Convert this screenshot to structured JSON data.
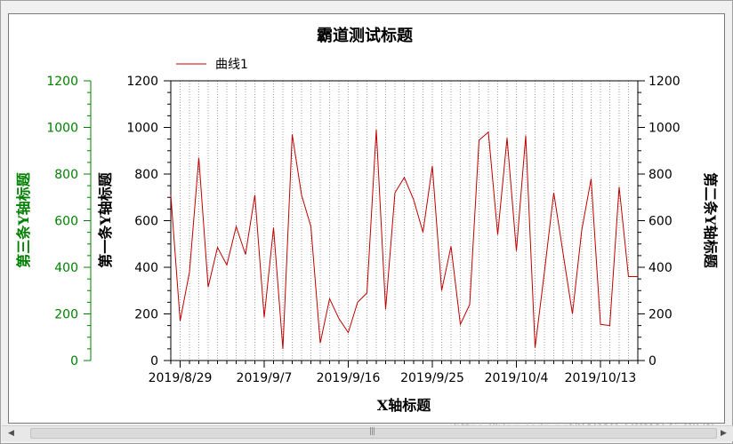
{
  "colors": {
    "series": "#c00000",
    "axis_left_outer": "#008000",
    "axis": "#000000",
    "grid": "#a0a0a0"
  },
  "watermark": "https://blog.csdn.net/BADAO_LIOMAEG_QILIN",
  "scrollbar": {
    "left_icon": "scroll-left-arrow-icon",
    "right_icon": "scroll-right-arrow-icon",
    "grip": "|||"
  },
  "chart_data": {
    "type": "line",
    "title": "霸道测试标题",
    "xlabel": "X轴标题",
    "ylabel_left_outer": "第三条Y轴标题",
    "ylabel_left": "第一条Y轴标题",
    "ylabel_right": "第二条Y轴标题",
    "ylim": [
      0,
      1200
    ],
    "yticks": [
      0,
      200,
      400,
      600,
      800,
      1000,
      1200
    ],
    "xlim": [
      "2019-08-28",
      "2019-10-17"
    ],
    "xtick_labels": [
      "2019/8/29",
      "2019/9/7",
      "2019/9/16",
      "2019/9/25",
      "2019/10/4",
      "2019/10/13"
    ],
    "xtick_dates": [
      "2019-08-29",
      "2019-09-07",
      "2019-09-16",
      "2019-09-25",
      "2019-10-04",
      "2019-10-13"
    ],
    "grid": "vertical dotted lines at each day",
    "legend_position": "top-left",
    "series": [
      {
        "name": "曲线1",
        "x": [
          "2019-08-28",
          "2019-08-29",
          "2019-08-30",
          "2019-08-31",
          "2019-09-01",
          "2019-09-02",
          "2019-09-03",
          "2019-09-04",
          "2019-09-05",
          "2019-09-06",
          "2019-09-07",
          "2019-09-08",
          "2019-09-09",
          "2019-09-10",
          "2019-09-11",
          "2019-09-12",
          "2019-09-13",
          "2019-09-14",
          "2019-09-15",
          "2019-09-16",
          "2019-09-17",
          "2019-09-18",
          "2019-09-19",
          "2019-09-20",
          "2019-09-21",
          "2019-09-22",
          "2019-09-23",
          "2019-09-24",
          "2019-09-25",
          "2019-09-26",
          "2019-09-27",
          "2019-09-28",
          "2019-09-29",
          "2019-09-30",
          "2019-10-01",
          "2019-10-02",
          "2019-10-03",
          "2019-10-04",
          "2019-10-05",
          "2019-10-06",
          "2019-10-07",
          "2019-10-08",
          "2019-10-09",
          "2019-10-10",
          "2019-10-11",
          "2019-10-12",
          "2019-10-13",
          "2019-10-14",
          "2019-10-15",
          "2019-10-16",
          "2019-10-17"
        ],
        "values": [
          710,
          170,
          380,
          870,
          315,
          485,
          410,
          575,
          455,
          710,
          185,
          570,
          50,
          970,
          710,
          575,
          75,
          265,
          180,
          120,
          250,
          290,
          990,
          220,
          720,
          785,
          690,
          550,
          835,
          300,
          490,
          155,
          240,
          945,
          980,
          540,
          955,
          470,
          965,
          55,
          380,
          720,
          460,
          200,
          560,
          780,
          155,
          150,
          745,
          360,
          360
        ]
      }
    ]
  }
}
